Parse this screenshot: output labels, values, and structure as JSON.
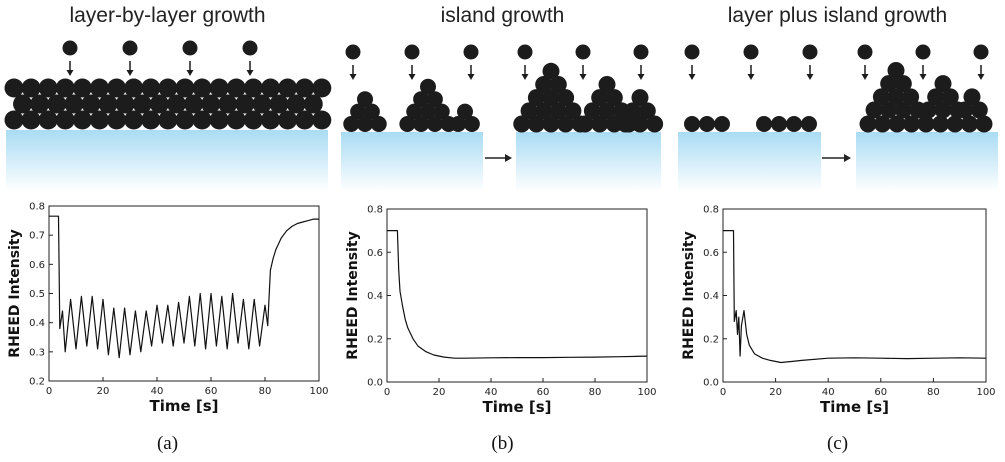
{
  "panels": [
    {
      "title": "layer-by-layer growth",
      "caption": "(a)",
      "chart_data": {
        "type": "line",
        "title": "",
        "xlabel": "Time [s]",
        "ylabel": "RHEED Intensity",
        "xlim": [
          0,
          100
        ],
        "ylim": [
          0.2,
          0.8
        ],
        "xticks": [
          "0",
          "20",
          "40",
          "60",
          "80",
          "100"
        ],
        "yticks": [
          "0.2",
          "0.3",
          "0.4",
          "0.5",
          "0.6",
          "0.7",
          "0.8"
        ],
        "x": [
          0,
          3.5,
          4,
          5,
          6,
          8,
          10,
          12,
          14,
          16,
          18,
          20,
          22,
          24,
          26,
          28,
          30,
          32,
          34,
          36,
          38,
          40,
          42,
          44,
          46,
          48,
          50,
          52,
          54,
          56,
          58,
          60,
          62,
          64,
          66,
          68,
          70,
          72,
          74,
          76,
          78,
          80,
          81,
          82,
          83,
          84,
          86,
          88,
          90,
          92,
          94,
          96,
          98,
          100
        ],
        "y": [
          0.765,
          0.765,
          0.38,
          0.44,
          0.3,
          0.48,
          0.31,
          0.49,
          0.32,
          0.49,
          0.31,
          0.48,
          0.29,
          0.45,
          0.28,
          0.45,
          0.29,
          0.44,
          0.3,
          0.44,
          0.32,
          0.46,
          0.33,
          0.46,
          0.32,
          0.47,
          0.33,
          0.49,
          0.32,
          0.5,
          0.31,
          0.5,
          0.32,
          0.49,
          0.31,
          0.5,
          0.33,
          0.48,
          0.31,
          0.48,
          0.32,
          0.46,
          0.39,
          0.58,
          0.62,
          0.65,
          0.69,
          0.715,
          0.73,
          0.74,
          0.745,
          0.75,
          0.755,
          0.755
        ]
      },
      "illustration": {
        "atoms_top": 4,
        "rows": 3,
        "arrow": false
      }
    },
    {
      "title": "island growth",
      "caption": "(b)",
      "chart_data": {
        "type": "line",
        "title": "",
        "xlabel": "Time [s]",
        "ylabel": "RHEED Intensity",
        "xlim": [
          0,
          100
        ],
        "ylim": [
          0.0,
          0.8
        ],
        "xticks": [
          "0",
          "20",
          "40",
          "60",
          "80",
          "100"
        ],
        "yticks": [
          "0.0",
          "0.2",
          "0.4",
          "0.6",
          "0.8"
        ],
        "x": [
          0,
          4,
          4.5,
          5,
          6,
          7,
          8,
          10,
          12,
          15,
          18,
          22,
          26,
          30,
          40,
          50,
          60,
          70,
          80,
          90,
          100
        ],
        "y": [
          0.7,
          0.7,
          0.52,
          0.42,
          0.35,
          0.29,
          0.25,
          0.2,
          0.165,
          0.14,
          0.125,
          0.115,
          0.11,
          0.11,
          0.112,
          0.113,
          0.113,
          0.114,
          0.115,
          0.117,
          0.12
        ]
      },
      "illustration": {
        "arrow": true
      }
    },
    {
      "title": "layer plus island growth",
      "caption": "(c)",
      "chart_data": {
        "type": "line",
        "title": "",
        "xlabel": "Time [s]",
        "ylabel": "RHEED Intensity",
        "xlim": [
          0,
          100
        ],
        "ylim": [
          0.0,
          0.8
        ],
        "xticks": [
          "0",
          "20",
          "40",
          "60",
          "80",
          "100"
        ],
        "yticks": [
          "0.0",
          "0.2",
          "0.4",
          "0.6",
          "0.8"
        ],
        "x": [
          0,
          4,
          4.3,
          5,
          5.5,
          6,
          6.5,
          7,
          8,
          9,
          10,
          12,
          15,
          18,
          22,
          26,
          30,
          40,
          50,
          60,
          70,
          80,
          90,
          100
        ],
        "y": [
          0.7,
          0.7,
          0.28,
          0.33,
          0.22,
          0.3,
          0.12,
          0.26,
          0.33,
          0.22,
          0.17,
          0.13,
          0.11,
          0.1,
          0.09,
          0.095,
          0.1,
          0.11,
          0.112,
          0.11,
          0.108,
          0.11,
          0.112,
          0.11
        ]
      },
      "illustration": {
        "arrow": true
      }
    }
  ],
  "colors": {
    "atom": "#1c1c1c",
    "substrate_top": "#a9dcf3",
    "substrate_bottom": "#ffffff",
    "curve": "#111111",
    "axis": "#222222"
  }
}
